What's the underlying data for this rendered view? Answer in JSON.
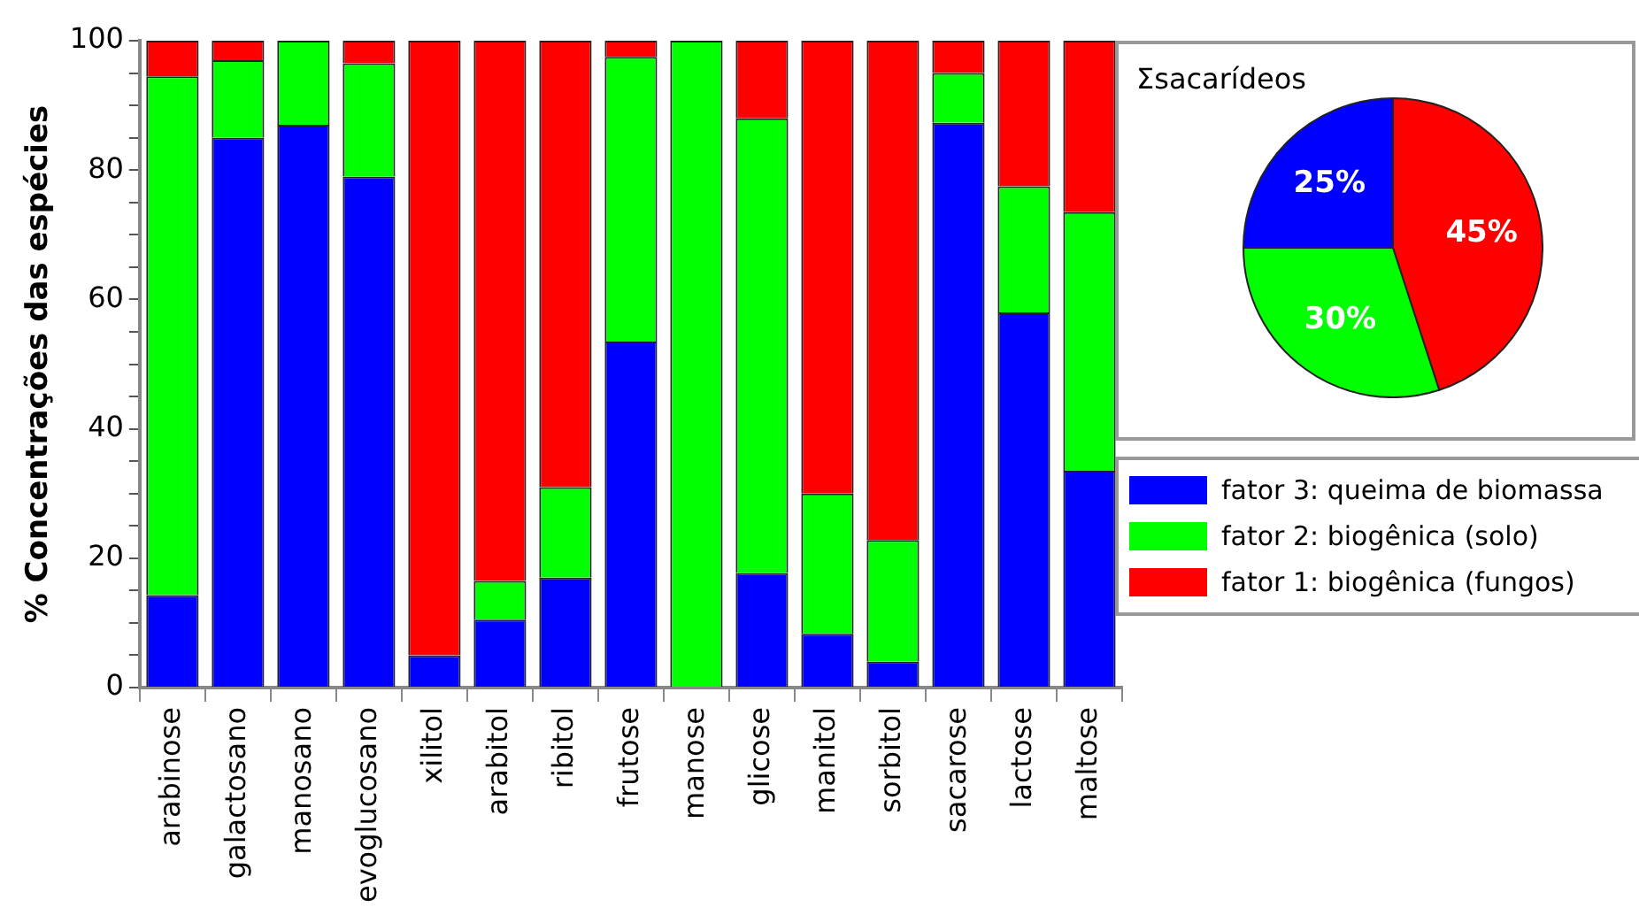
{
  "chart_data": [
    {
      "type": "bar",
      "stacked": true,
      "ylabel": "% Concentrações das espécies",
      "categories": [
        "arabinose",
        "galactosano",
        "manosano",
        "evoglucosano",
        "xilitol",
        "arabitol",
        "ribitol",
        "frutose",
        "manose",
        "glicose",
        "manitol",
        "sorbitol",
        "sacarose",
        "lactose",
        "maltose"
      ],
      "series": [
        {
          "name": "fator 3: queima de biomassa",
          "color": "#0000ff",
          "values": [
            14.3,
            85,
            87,
            79,
            5,
            10.5,
            17,
            53.5,
            0,
            17.7,
            8.3,
            4,
            87.3,
            58,
            33.5
          ]
        },
        {
          "name": "fator 2: biogênica (solo)",
          "color": "#00ff00",
          "values": [
            80.2,
            12,
            13,
            17.5,
            0,
            6,
            14,
            44,
            100,
            70.3,
            21.7,
            18.8,
            7.7,
            19.5,
            40
          ]
        },
        {
          "name": "fator 1: biogênica (fungos)",
          "color": "#ff0000",
          "values": [
            5.5,
            3,
            0,
            3.5,
            95,
            83.5,
            69,
            2.5,
            0,
            12,
            70,
            77.2,
            5,
            22.5,
            26.5
          ]
        }
      ],
      "ylim": [
        0,
        100
      ],
      "yticks": [
        0,
        {
          "value": 5,
          "label": null
        },
        {
          "value": 10,
          "label": null
        },
        {
          "value": 15,
          "label": null
        },
        20,
        {
          "value": 25,
          "label": null
        },
        {
          "value": 30,
          "label": null
        },
        {
          "value": 35,
          "label": null
        },
        40,
        {
          "value": 45,
          "label": null
        },
        {
          "value": 50,
          "label": null
        },
        {
          "value": 55,
          "label": null
        },
        60,
        {
          "value": 65,
          "label": null
        },
        {
          "value": 70,
          "label": null
        },
        {
          "value": 75,
          "label": null
        },
        80,
        {
          "value": 85,
          "label": null
        },
        {
          "value": 90,
          "label": null
        },
        {
          "value": 95,
          "label": null
        },
        100
      ],
      "grid": false,
      "legend": "right"
    },
    {
      "type": "pie",
      "title": "Σsacarídeos",
      "categories": [
        null,
        null,
        null
      ],
      "values": [
        45,
        30,
        25
      ],
      "colors": [
        "#ff0000",
        "#00ff00",
        "#0000ff"
      ],
      "value_labels": [
        "45%",
        "30%",
        "25%"
      ]
    }
  ]
}
